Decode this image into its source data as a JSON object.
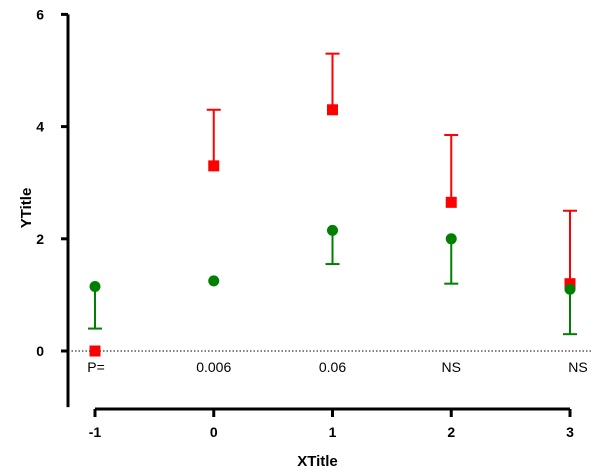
{
  "chart_data": {
    "type": "scatter",
    "xlabel": "XTitle",
    "ylabel": "YTitle",
    "xlim": [
      -1,
      3
    ],
    "ylim": [
      -1,
      6
    ],
    "x_ticks": [
      "-1",
      "0",
      "1",
      "2",
      "3"
    ],
    "y_ticks": [
      "0",
      "2",
      "4",
      "6"
    ],
    "grid": false,
    "reference_line": {
      "y": 0,
      "style": "dotted"
    },
    "series": [
      {
        "marker": "square",
        "color": "#ff0000",
        "x": [
          -1,
          0,
          1,
          2,
          3
        ],
        "y": [
          0,
          3.3,
          4.3,
          2.65,
          1.2
        ],
        "error_plus": [
          0,
          1.0,
          1.0,
          1.2,
          1.3
        ],
        "error_minus": [
          0,
          0,
          0,
          0,
          0
        ]
      },
      {
        "marker": "circle",
        "color": "#008000",
        "x": [
          -1,
          0,
          1,
          2,
          3
        ],
        "y": [
          1.15,
          1.25,
          2.15,
          2.0,
          1.1
        ],
        "error_plus": [
          0,
          0,
          0,
          0,
          0
        ],
        "error_minus": [
          0.75,
          0,
          0.6,
          0.8,
          0.8
        ]
      }
    ],
    "annotations": [
      {
        "x": -1,
        "text": "P="
      },
      {
        "x": 0,
        "text": "0.006"
      },
      {
        "x": 1,
        "text": "0.06"
      },
      {
        "x": 2,
        "text": "NS"
      },
      {
        "x": 3,
        "text": "NS"
      }
    ]
  }
}
